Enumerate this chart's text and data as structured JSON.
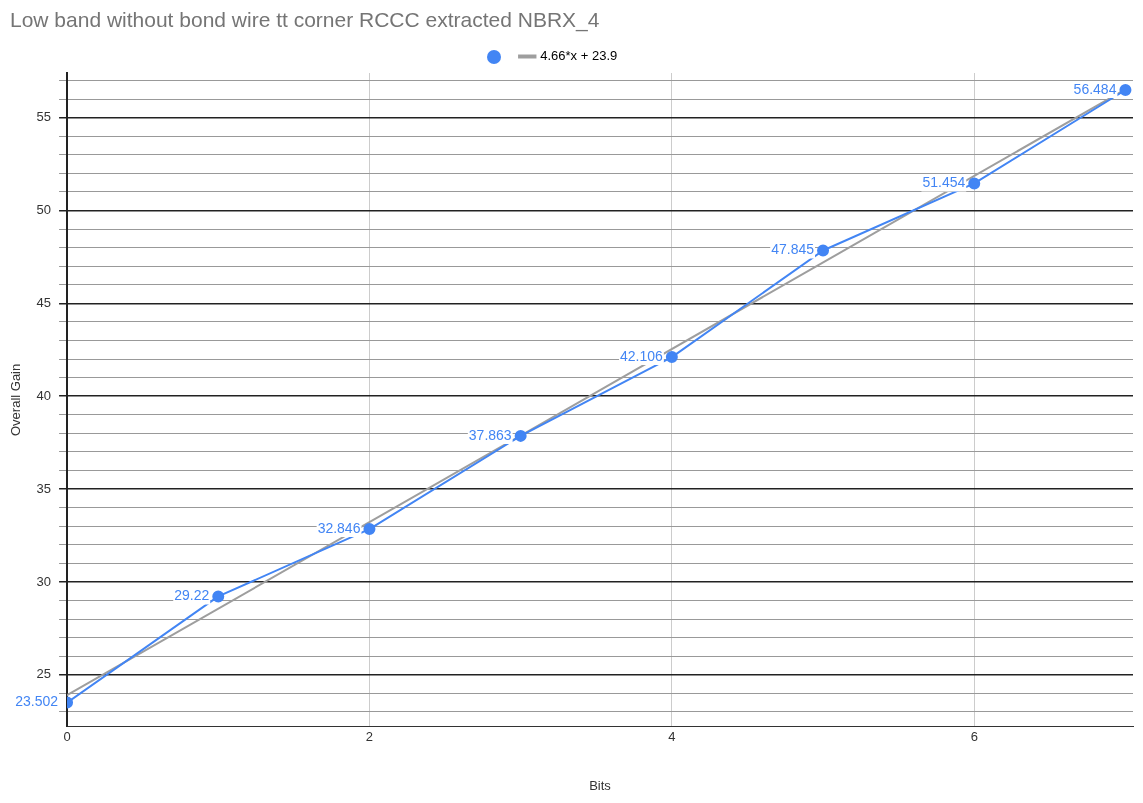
{
  "chart_data": {
    "type": "line",
    "title": "Low band without bond wire tt corner RCCC extracted NBRX_4",
    "xlabel": "Bits",
    "ylabel": "Overall Gain",
    "x": [
      0,
      1,
      2,
      3,
      4,
      5,
      6,
      7
    ],
    "series": [
      {
        "color": "#4285f4",
        "values": [
          23.502,
          29.22,
          32.846,
          37.863,
          42.106,
          47.845,
          51.454,
          56.484
        ],
        "value_labels": [
          "23.502",
          "29.22",
          "32.846",
          "37.863",
          "42.106",
          "47.845",
          "51.454",
          "56.484"
        ],
        "marker": "circle"
      },
      {
        "name": "4.66*x + 23.9",
        "type": "line",
        "color": "#9e9e9e",
        "x": [
          0,
          7
        ],
        "values": [
          23.9,
          56.52
        ],
        "marker": "none"
      }
    ],
    "xlim": [
      0,
      7.05
    ],
    "xticks": [
      0,
      2,
      4,
      6
    ],
    "ylim": [
      22.2,
      57.4
    ],
    "yticks": [
      {
        "value": 23,
        "label": null
      },
      {
        "value": 24,
        "label": null
      },
      25,
      {
        "value": 26,
        "label": null
      },
      {
        "value": 27,
        "label": null
      },
      {
        "value": 28,
        "label": null
      },
      {
        "value": 29,
        "label": null
      },
      30,
      {
        "value": 31,
        "label": null
      },
      {
        "value": 32,
        "label": null
      },
      {
        "value": 33,
        "label": null
      },
      {
        "value": 34,
        "label": null
      },
      35,
      {
        "value": 36,
        "label": null
      },
      {
        "value": 37,
        "label": null
      },
      {
        "value": 38,
        "label": null
      },
      {
        "value": 39,
        "label": null
      },
      40,
      {
        "value": 41,
        "label": null
      },
      {
        "value": 42,
        "label": null
      },
      {
        "value": 43,
        "label": null
      },
      {
        "value": 44,
        "label": null
      },
      45,
      {
        "value": 46,
        "label": null
      },
      {
        "value": 47,
        "label": null
      },
      {
        "value": 48,
        "label": null
      },
      {
        "value": 49,
        "label": null
      },
      50,
      {
        "value": 51,
        "label": null
      },
      {
        "value": 52,
        "label": null
      },
      {
        "value": 53,
        "label": null
      },
      {
        "value": 54,
        "label": null
      },
      55,
      {
        "value": 56,
        "label": null
      },
      {
        "value": 57,
        "label": null
      }
    ],
    "grid": true,
    "legend": "top"
  }
}
